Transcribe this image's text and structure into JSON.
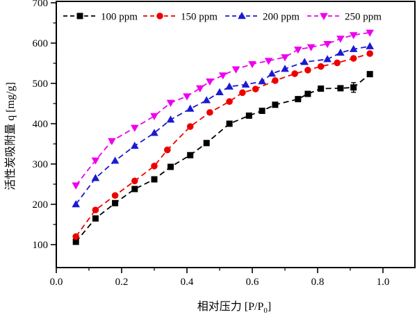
{
  "chart_data": {
    "type": "line",
    "title": "",
    "xlabel": "相对压力 [P/P0]",
    "xlabel_parts": {
      "prefix": "相对压力 [P/P",
      "sub": "0",
      "suffix": "]"
    },
    "ylabel": "活性炭吸附量 q [mg/g]",
    "xlim": [
      0,
      1.1
    ],
    "ylim": [
      43,
      703
    ],
    "x_ticks": [
      0,
      0.2,
      0.4,
      0.6,
      0.8,
      1.0
    ],
    "x_tick_labels": [
      "0.0",
      "0.2",
      "0.4",
      "0.6",
      "0.8",
      "1.0"
    ],
    "x_minor_ticks": [
      0.1,
      0.3,
      0.5,
      0.7,
      0.9
    ],
    "y_ticks": [
      100,
      200,
      300,
      400,
      500,
      600,
      700
    ],
    "y_tick_labels": [
      "100",
      "200",
      "300",
      "400",
      "500",
      "600",
      "700"
    ],
    "y_minor_ticks": [
      150,
      250,
      350,
      450,
      550,
      650
    ],
    "grid": false,
    "background": "#ffffff",
    "axes_color": "#000000",
    "legend_position": "top-inside-row",
    "series": [
      {
        "name": "100 ppm",
        "color": "#000000",
        "marker": "square",
        "line_style": "dashed",
        "x": [
          0.06,
          0.12,
          0.18,
          0.24,
          0.3,
          0.35,
          0.41,
          0.46,
          0.53,
          0.59,
          0.63,
          0.67,
          0.74,
          0.77,
          0.81,
          0.87,
          0.91,
          0.96
        ],
        "y": [
          107,
          165,
          203,
          238,
          262,
          293,
          322,
          352,
          400,
          420,
          432,
          447,
          461,
          474,
          487,
          488,
          490,
          523
        ],
        "error_bars": [
          {
            "index": 16,
            "plus_minus": 12
          }
        ]
      },
      {
        "name": "150 ppm",
        "color": "#ee0000",
        "marker": "circle",
        "line_style": "dashed",
        "x": [
          0.06,
          0.12,
          0.18,
          0.24,
          0.3,
          0.34,
          0.41,
          0.47,
          0.53,
          0.57,
          0.61,
          0.67,
          0.73,
          0.77,
          0.81,
          0.86,
          0.91,
          0.96
        ],
        "y": [
          120,
          186,
          222,
          258,
          295,
          335,
          393,
          428,
          455,
          477,
          486,
          507,
          524,
          533,
          542,
          551,
          562,
          574
        ],
        "error_bars": []
      },
      {
        "name": "200 ppm",
        "color": "#1a1ad2",
        "marker": "triangle-up",
        "line_style": "dashed",
        "x": [
          0.06,
          0.12,
          0.18,
          0.24,
          0.3,
          0.35,
          0.41,
          0.46,
          0.5,
          0.53,
          0.58,
          0.63,
          0.66,
          0.7,
          0.76,
          0.83,
          0.87,
          0.91,
          0.96
        ],
        "y": [
          200,
          265,
          308,
          345,
          377,
          410,
          437,
          458,
          478,
          492,
          497,
          505,
          524,
          536,
          553,
          560,
          576,
          585,
          592
        ],
        "error_bars": []
      },
      {
        "name": "250 ppm",
        "color": "#ee00ee",
        "marker": "triangle-down",
        "line_style": "dashed",
        "x": [
          0.06,
          0.12,
          0.17,
          0.24,
          0.3,
          0.35,
          0.4,
          0.44,
          0.47,
          0.51,
          0.55,
          0.6,
          0.65,
          0.7,
          0.74,
          0.78,
          0.83,
          0.87,
          0.91,
          0.96
        ],
        "y": [
          247,
          309,
          357,
          390,
          419,
          452,
          468,
          488,
          505,
          520,
          535,
          548,
          556,
          565,
          584,
          590,
          598,
          611,
          620,
          626
        ],
        "error_bars": []
      }
    ]
  }
}
